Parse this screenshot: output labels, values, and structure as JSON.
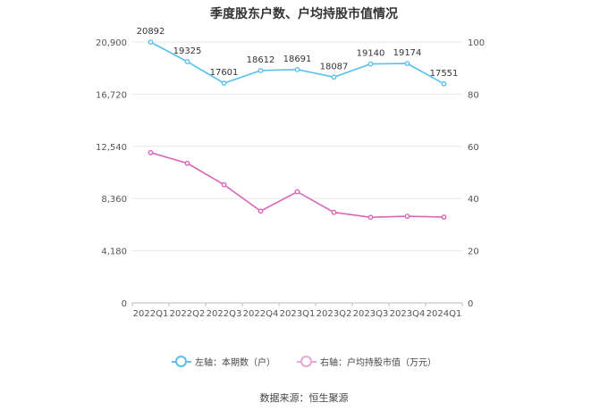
{
  "colors": {
    "left_series": "#5bc0eb",
    "right_series": "#d966b8"
  },
  "chart_data": {
    "type": "line",
    "title": "季度股东户数、户均持股市值情况",
    "categories": [
      "2022Q1",
      "2022Q2",
      "2022Q3",
      "2022Q4",
      "2023Q1",
      "2023Q2",
      "2023Q3",
      "2023Q4",
      "2024Q1"
    ],
    "left_axis": {
      "ylim": [
        0,
        20900
      ],
      "ticks": [
        "0",
        "4,180",
        "8,360",
        "12,540",
        "16,720",
        "20,900"
      ],
      "tick_values": [
        0,
        4180,
        8360,
        12540,
        16720,
        20900
      ]
    },
    "right_axis": {
      "ylim": [
        0,
        100
      ],
      "ticks": [
        "0",
        "20",
        "40",
        "60",
        "80",
        "100"
      ],
      "tick_values": [
        0,
        20,
        40,
        60,
        80,
        100
      ]
    },
    "series": [
      {
        "name": "左轴：本期数（户）",
        "axis": "left",
        "values": [
          20892,
          19325,
          17601,
          18612,
          18691,
          18087,
          19140,
          19174,
          17551
        ],
        "labels": [
          "20892",
          "19325",
          "17601",
          "18612",
          "18691",
          "18087",
          "19140",
          "19174",
          "17551"
        ]
      },
      {
        "name": "右轴：户均持股市值（万元）",
        "axis": "right",
        "values": [
          57.6,
          53.5,
          45.3,
          35.2,
          42.6,
          34.7,
          32.8,
          33.2,
          32.9
        ]
      }
    ]
  },
  "legend": {
    "left_label": "左轴：本期数（户）",
    "right_label": "右轴：户均持股市值（万元）"
  },
  "source": "数据来源：恒生聚源"
}
